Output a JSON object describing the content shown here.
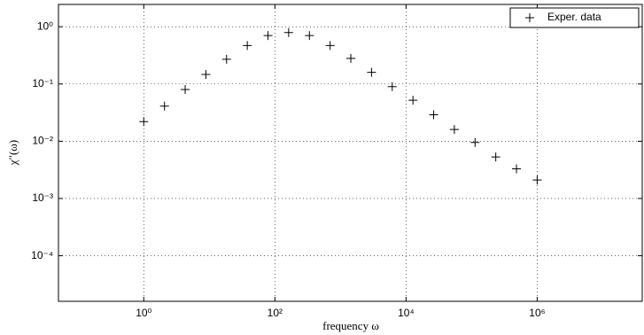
{
  "chart_data": {
    "type": "scatter",
    "x_label": "frequency ω",
    "y_label": "χ″(ω)",
    "x_log": true,
    "y_log": true,
    "grid": true,
    "legend": "upper right",
    "xlim": [
      0.05,
      40000000
    ],
    "ylim": [
      1.6e-05,
      2.45
    ],
    "xticks": [
      {
        "value": 1,
        "label": "10⁰"
      },
      {
        "value": 100,
        "label": "10²"
      },
      {
        "value": 10000,
        "label": "10⁴"
      },
      {
        "value": 1000000,
        "label": "10⁶"
      }
    ],
    "yticks": [
      {
        "value": 0.0001,
        "label": "10⁻⁴"
      },
      {
        "value": 0.001,
        "label": "10⁻³"
      },
      {
        "value": 0.01,
        "label": "10⁻²"
      },
      {
        "value": 0.1,
        "label": "10⁻¹"
      },
      {
        "value": 1,
        "label": "10⁰"
      }
    ],
    "series": [
      {
        "name": "Exper. data",
        "color": "#000000",
        "marker": "+",
        "x": [
          1,
          2.07,
          4.28,
          8.86,
          18.3,
          37.9,
          78.5,
          162,
          336,
          695,
          1438,
          2976,
          6158,
          12743,
          26367,
          54556,
          112884,
          233572,
          483293,
          1000000
        ],
        "values": [
          0.022,
          0.041,
          0.08,
          0.147,
          0.27,
          0.47,
          0.7,
          0.79,
          0.7,
          0.47,
          0.28,
          0.16,
          0.09,
          0.052,
          0.029,
          0.016,
          0.0095,
          0.0053,
          0.0033,
          0.0021
        ]
      }
    ]
  }
}
